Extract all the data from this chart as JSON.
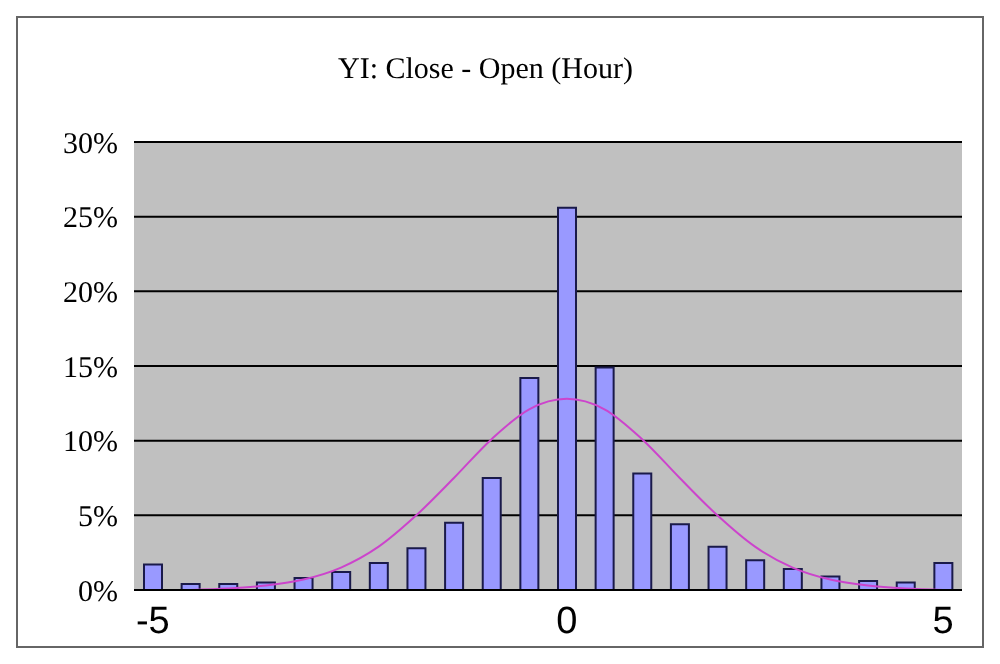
{
  "chart_data": {
    "type": "bar",
    "title": "YI: Close - Open (Hour)",
    "categories": [
      "-5",
      null,
      null,
      null,
      null,
      null,
      null,
      null,
      null,
      null,
      null,
      "0",
      null,
      null,
      null,
      null,
      null,
      null,
      null,
      null,
      null,
      "5"
    ],
    "series": [
      {
        "color": "#9999ff",
        "values": [
          1.7,
          0.4,
          0.4,
          0.5,
          0.8,
          1.2,
          1.8,
          2.8,
          4.5,
          7.5,
          14.2,
          25.6,
          14.9,
          7.8,
          4.4,
          2.9,
          2.0,
          1.4,
          0.9,
          0.6,
          0.5,
          1.8
        ]
      },
      {
        "type": "line",
        "color": "#cc44cc",
        "values": [
          null,
          0.0,
          0.1,
          0.3,
          0.7,
          1.5,
          2.9,
          5.0,
          7.5,
          10.1,
          12.1,
          12.8,
          12.1,
          10.1,
          7.5,
          5.0,
          2.9,
          1.5,
          0.7,
          0.3,
          0.1,
          0.0
        ]
      }
    ],
    "ylim": [
      0,
      30
    ],
    "yticks": [
      {
        "value": 0,
        "label": "0%"
      },
      {
        "value": 5,
        "label": "5%"
      },
      {
        "value": 10,
        "label": "10%"
      },
      {
        "value": 15,
        "label": "15%"
      },
      {
        "value": 20,
        "label": "20%"
      },
      {
        "value": 25,
        "label": "25%"
      },
      {
        "value": 30,
        "label": "30%"
      }
    ],
    "grid": "y",
    "legend": false,
    "marker": "none",
    "line_style": "solid"
  }
}
